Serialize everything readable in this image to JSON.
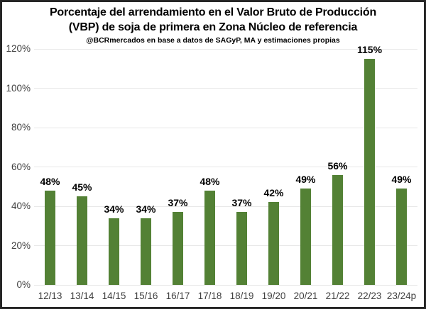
{
  "chart": {
    "title_line1": "Porcentaje del arrendamiento en el Valor Bruto de Producción",
    "title_line2": "(VBP) de soja de primera en Zona Núcleo de referencia",
    "subtitle": "@BCRmercados en base a datos de SAGyP, MA y estimaciones propias",
    "colors": {
      "bar": "#538135",
      "gridline": "#e8e8e8",
      "axis_text": "#3f3f3f",
      "value_label_text": "#000000",
      "border": "#262626",
      "background": "#ffffff"
    }
  },
  "chart_data": {
    "type": "bar",
    "title": "Porcentaje del arrendamiento en el Valor Bruto de Producción (VBP) de soja de primera en Zona Núcleo de referencia",
    "subtitle": "@BCRmercados en base a datos de SAGyP, MA y estimaciones propias",
    "categories": [
      "12/13",
      "13/14",
      "14/15",
      "15/16",
      "16/17",
      "17/18",
      "18/19",
      "19/20",
      "20/21",
      "21/22",
      "22/23",
      "23/24p"
    ],
    "values": [
      48,
      45,
      34,
      34,
      37,
      48,
      37,
      42,
      49,
      56,
      115,
      49
    ],
    "data_labels": [
      "48%",
      "45%",
      "34%",
      "34%",
      "37%",
      "48%",
      "37%",
      "42%",
      "49%",
      "56%",
      "115%",
      "49%"
    ],
    "xlabel": "",
    "ylabel": "",
    "ylim": [
      0,
      120
    ],
    "ytick_step": 20,
    "ytick_labels": [
      "0%",
      "20%",
      "40%",
      "60%",
      "80%",
      "100%",
      "120%"
    ],
    "grid": true,
    "legend": false
  }
}
